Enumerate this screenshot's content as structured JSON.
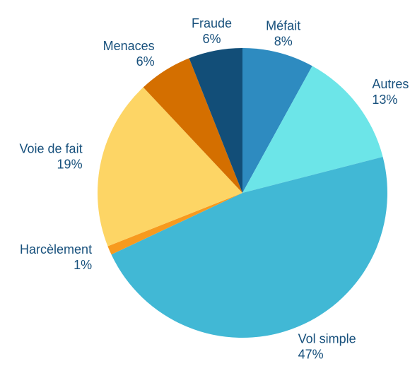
{
  "chart_data": {
    "type": "pie",
    "categories": [
      "Méfait",
      "Autres",
      "Vol simple",
      "Harcèlement",
      "Voie de fait",
      "Menaces",
      "Fraude"
    ],
    "values": [
      8,
      13,
      47,
      1,
      19,
      6,
      6
    ],
    "value_labels": [
      "8%",
      "13%",
      "47%",
      "1%",
      "19%",
      "6%",
      "6%"
    ],
    "colors": [
      "#2e8bc0",
      "#6ce5e8",
      "#41b8d5",
      "#f79a1e",
      "#fdd565",
      "#d46f00",
      "#124e78"
    ]
  }
}
